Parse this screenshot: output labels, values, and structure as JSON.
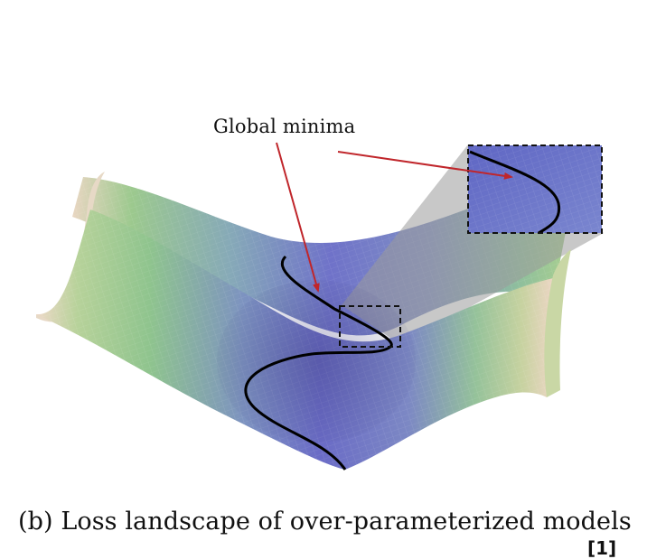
{
  "figure": {
    "annotation_label": "Global minima",
    "caption": "(b) Loss landscape of over-parameterized models",
    "reference_mark": "[1]"
  },
  "colors": {
    "surface_center": "#6f72c9",
    "surface_mid": "#86a9b8",
    "surface_green": "#9cc98e",
    "surface_edge": "#e9d6c2",
    "minima_curve": "#000000",
    "arrow": "#c0262b",
    "zoom_shadow": "#9a9a9a"
  }
}
